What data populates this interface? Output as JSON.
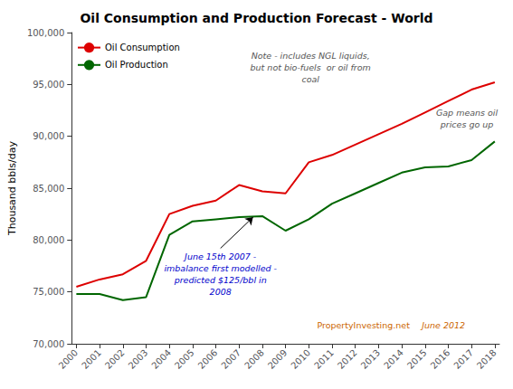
{
  "chart_data": {
    "type": "line",
    "title": "Oil Consumption and Production Forecast - World",
    "ylabel": "Thousand bbls/day",
    "x": [
      2000,
      2001,
      2002,
      2003,
      2004,
      2005,
      2006,
      2007,
      2008,
      2009,
      2010,
      2011,
      2012,
      2013,
      2014,
      2015,
      2016,
      2017,
      2018
    ],
    "series": [
      {
        "name": "Oil Consumption",
        "color": "#DD0000",
        "values": [
          75500,
          76200,
          76700,
          78000,
          82500,
          83300,
          83800,
          85300,
          84700,
          84500,
          87500,
          88200,
          89200,
          90200,
          91200,
          92300,
          93400,
          94500,
          95200
        ]
      },
      {
        "name": "Oil Production",
        "color": "#006600",
        "values": [
          74800,
          74800,
          74200,
          74500,
          80500,
          81800,
          82000,
          82200,
          82300,
          80900,
          82000,
          83500,
          84500,
          85500,
          86500,
          87000,
          87100,
          87700,
          89500
        ]
      }
    ],
    "xlim": [
      1999.8,
      2018.2
    ],
    "xticks": [
      2000,
      2001,
      2002,
      2003,
      2004,
      2005,
      2006,
      2007,
      2008,
      2009,
      2010,
      2011,
      2012,
      2013,
      2014,
      2015,
      2016,
      2017,
      2018
    ],
    "ylim": [
      70000,
      100000
    ],
    "yticks": [
      {
        "value": 70000,
        "label": "70,000"
      },
      {
        "value": 75000,
        "label": "75,000"
      },
      {
        "value": 80000,
        "label": "80,000"
      },
      {
        "value": 85000,
        "label": "85,000"
      },
      {
        "value": 90000,
        "label": "90,000"
      },
      {
        "value": 95000,
        "label": "95,000"
      },
      {
        "value": 100000,
        "label": "100,000"
      }
    ],
    "grid": false,
    "legend": "upper left",
    "note": {
      "text": "Note - includes NGL liquids,\nbut not bio-fuels  or oil from\ncoal",
      "color": "#555555"
    },
    "annotations": [
      {
        "text": "June 15th 2007 -\nimbalance first modelled -\npredicted $125/bbl in\n2008",
        "color": "#0000CC",
        "x": 2006.2,
        "y": 79200,
        "arrow_x": 2007.6,
        "arrow_y": 82200
      },
      {
        "text": "Gap means oil\nprices go up",
        "color": "#555555",
        "x": 2016.8,
        "y": 91700
      }
    ],
    "watermark": {
      "texts": [
        "PropertyInvesting.net",
        "June 2012"
      ],
      "color": "#CC6600"
    }
  }
}
